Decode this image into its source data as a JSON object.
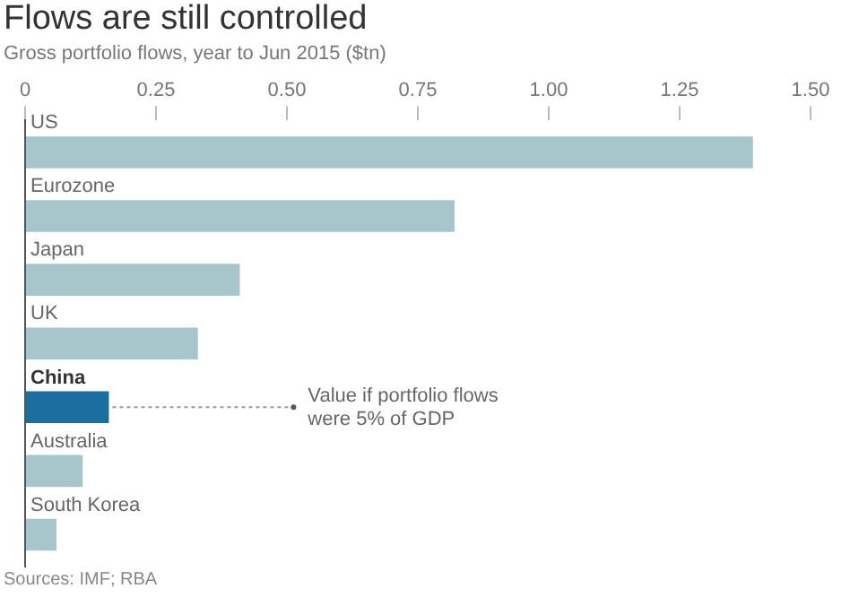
{
  "chart_data": {
    "type": "bar",
    "orientation": "horizontal",
    "title": "Flows are still controlled",
    "subtitle": "Gross portfolio flows, year to Jun 2015 ($tn)",
    "categories": [
      "US",
      "Eurozone",
      "Japan",
      "UK",
      "China",
      "Australia",
      "South Korea"
    ],
    "values": [
      1.39,
      0.82,
      0.41,
      0.33,
      0.16,
      0.11,
      0.06
    ],
    "colors": [
      "#a7c6cc",
      "#a7c6cc",
      "#a7c6cc",
      "#a7c6cc",
      "#1a6fa0",
      "#a7c6cc",
      "#a7c6cc"
    ],
    "xlim": [
      0,
      1.5
    ],
    "xticks": [
      0,
      {
        "value": 0.25,
        "label": "0.25"
      },
      {
        "value": 0.5,
        "label": "0.50"
      },
      {
        "value": 0.75,
        "label": "0.75"
      },
      {
        "value": 1,
        "label": "1.00"
      },
      1.25,
      {
        "value": 1.5,
        "label": "1.50"
      }
    ],
    "grid": false,
    "legend": false,
    "annotations": [
      {
        "text": "Value if portfolio flows were 5% of GDP",
        "x": 0.16,
        "y": "China"
      },
      "Sources: IMF; RBA"
    ]
  }
}
